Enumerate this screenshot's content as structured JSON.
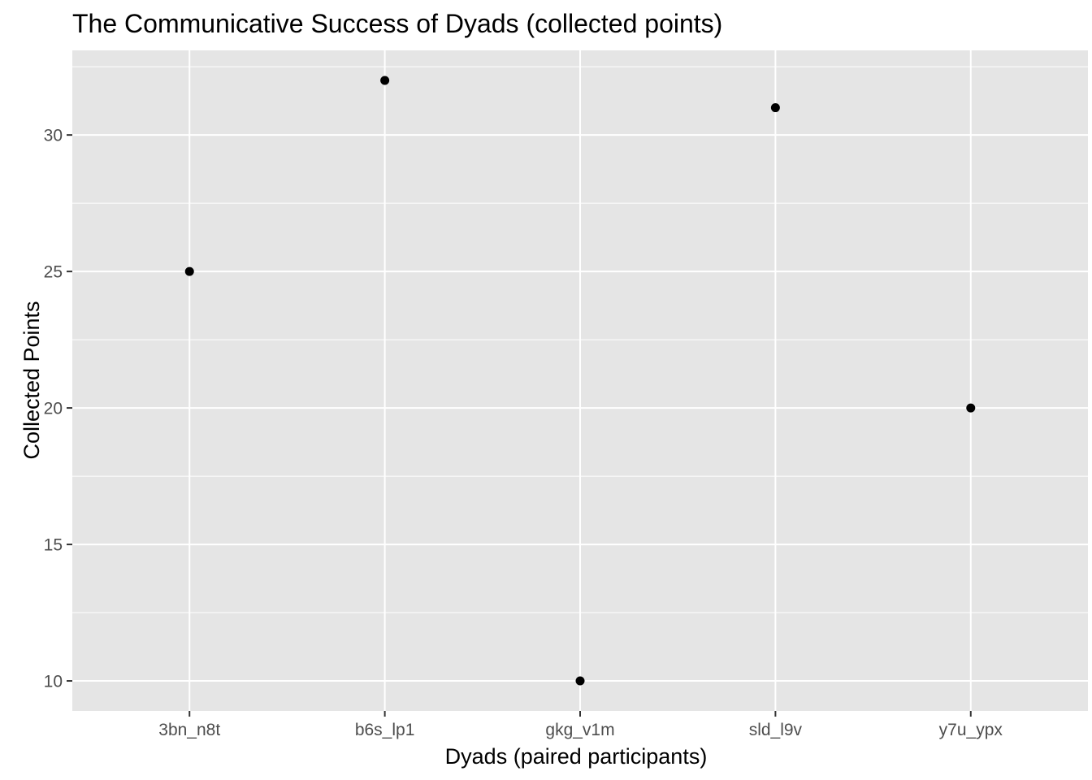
{
  "chart_data": {
    "type": "scatter",
    "title": "The Communicative Success of Dyads (collected points)",
    "xlabel": "Dyads (paired participants)",
    "ylabel": "Collected Points",
    "categories": [
      "3bn_n8t",
      "b6s_lp1",
      "gkg_v1m",
      "sld_l9v",
      "y7u_ypx"
    ],
    "values": [
      25,
      32,
      10,
      31,
      20
    ],
    "ylim": [
      8.9,
      33.1
    ],
    "yticks": [
      10,
      15,
      20,
      25,
      30
    ],
    "grid": true,
    "legend": "none",
    "colors": {
      "panel": "#e5e5e5",
      "grid": "#ffffff",
      "point": "#000000",
      "tick": "#333333",
      "tick_text": "#4d4d4d"
    }
  }
}
